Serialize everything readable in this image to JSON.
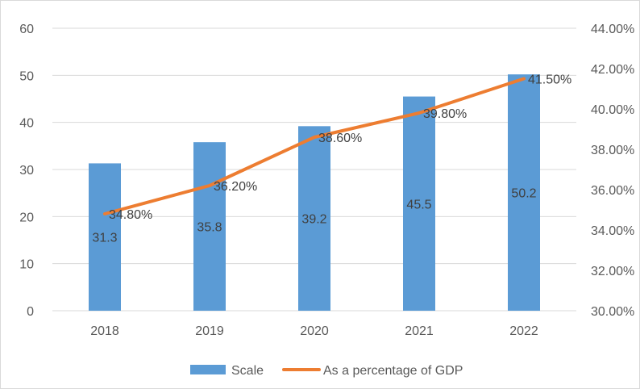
{
  "chart_data": {
    "type": "bar",
    "title": "",
    "categories": [
      "2018",
      "2019",
      "2020",
      "2021",
      "2022"
    ],
    "series": [
      {
        "name": "Scale",
        "type": "bar",
        "axis": "left",
        "values": [
          31.3,
          35.8,
          39.2,
          45.5,
          50.2
        ],
        "labels": [
          "31.3",
          "35.8",
          "39.2",
          "45.5",
          "50.2"
        ],
        "color": "#5b9bd5"
      },
      {
        "name": "As a percentage of GDP",
        "type": "line",
        "axis": "right",
        "values": [
          34.8,
          36.2,
          38.6,
          39.8,
          41.5
        ],
        "labels": [
          "34.80%",
          "36.20%",
          "38.60%",
          "39.80%",
          "41.50%"
        ],
        "color": "#ed7d31"
      }
    ],
    "y_left": {
      "ylim": [
        0,
        60
      ],
      "ticks": [
        "0",
        "10",
        "20",
        "30",
        "40",
        "50",
        "60"
      ]
    },
    "y_right": {
      "ylim": [
        30,
        44
      ],
      "ticks": [
        "30.00%",
        "32.00%",
        "34.00%",
        "36.00%",
        "38.00%",
        "40.00%",
        "42.00%",
        "44.00%"
      ]
    },
    "grid": true,
    "legend": "bottom"
  }
}
